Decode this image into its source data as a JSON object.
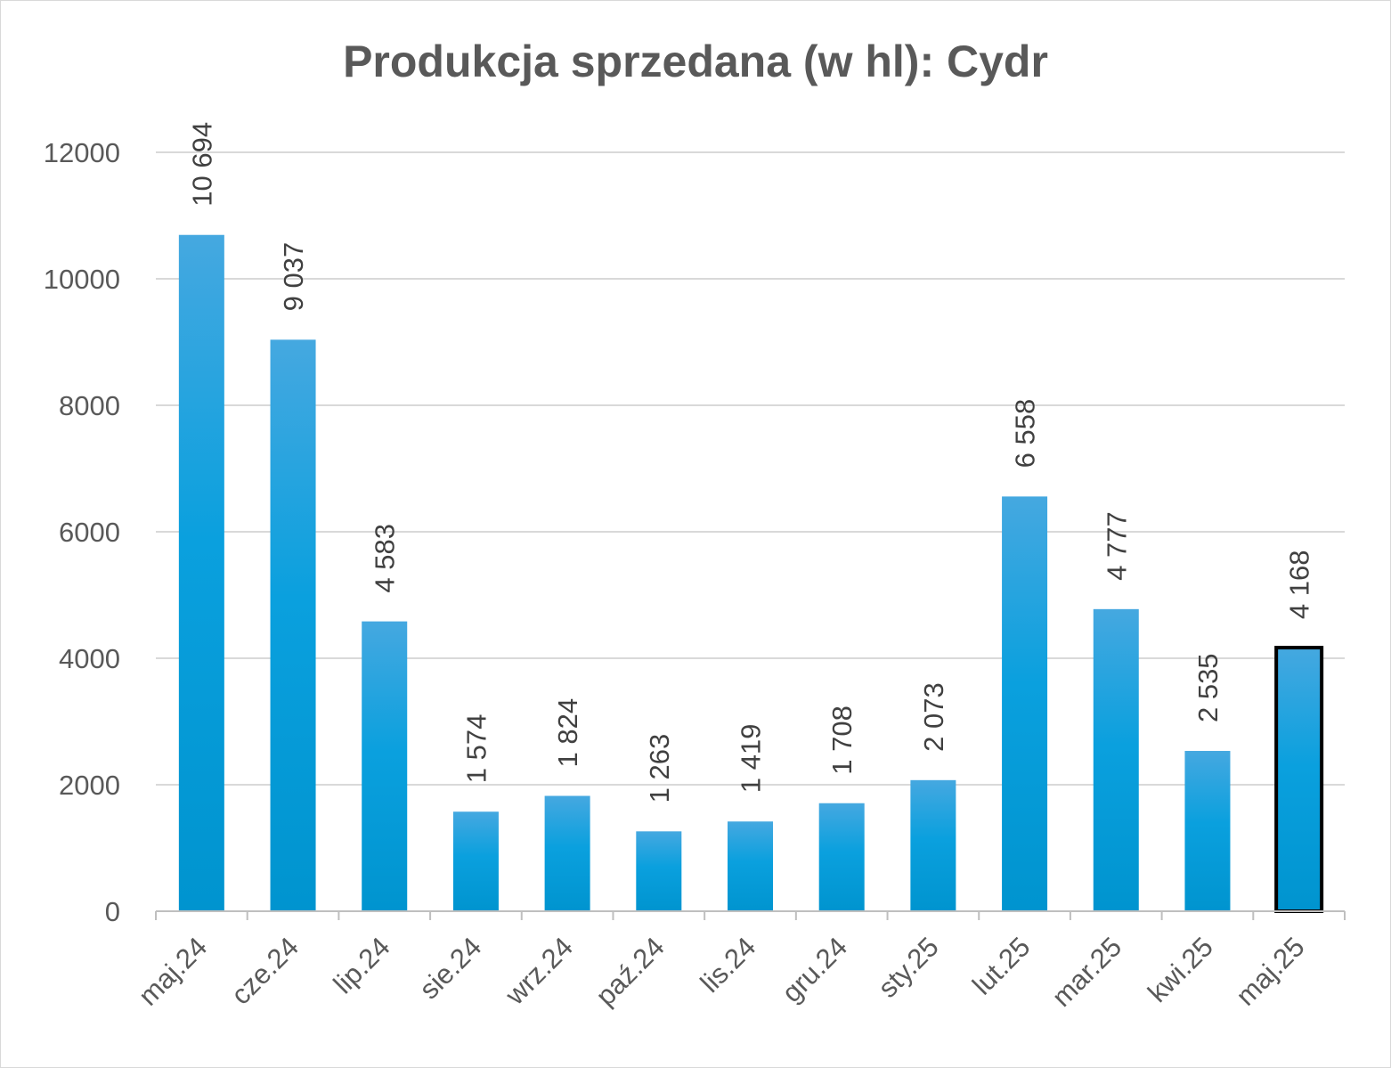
{
  "chart_data": {
    "type": "bar",
    "title": "Produkcja sprzedana (w hl): Cydr",
    "xlabel": "",
    "ylabel": "",
    "categories": [
      "maj.24",
      "cze.24",
      "lip.24",
      "sie.24",
      "wrz.24",
      "paź.24",
      "lis.24",
      "gru.24",
      "sty.25",
      "lut.25",
      "mar.25",
      "kwi.25",
      "maj.25"
    ],
    "values": [
      10694,
      9037,
      4583,
      1574,
      1824,
      1263,
      1419,
      1708,
      2073,
      6558,
      4777,
      2535,
      4168
    ],
    "data_labels": [
      "10 694",
      "9 037",
      "4 583",
      "1 574",
      "1 824",
      "1 263",
      "1 419",
      "1 708",
      "2 073",
      "6 558",
      "4 777",
      "2 535",
      "4 168"
    ],
    "ylim": [
      0,
      12000
    ],
    "yticks": [
      "0",
      "2000",
      "4000",
      "6000",
      "8000",
      "10000",
      "12000"
    ],
    "grid": true,
    "highlighted_category": "maj.25",
    "colors": {
      "bar": "#0E9FDB",
      "bar_light": "#45A8E0",
      "highlight_border": "#000000",
      "grid": "#d9d9d9",
      "text": "#595959"
    }
  }
}
